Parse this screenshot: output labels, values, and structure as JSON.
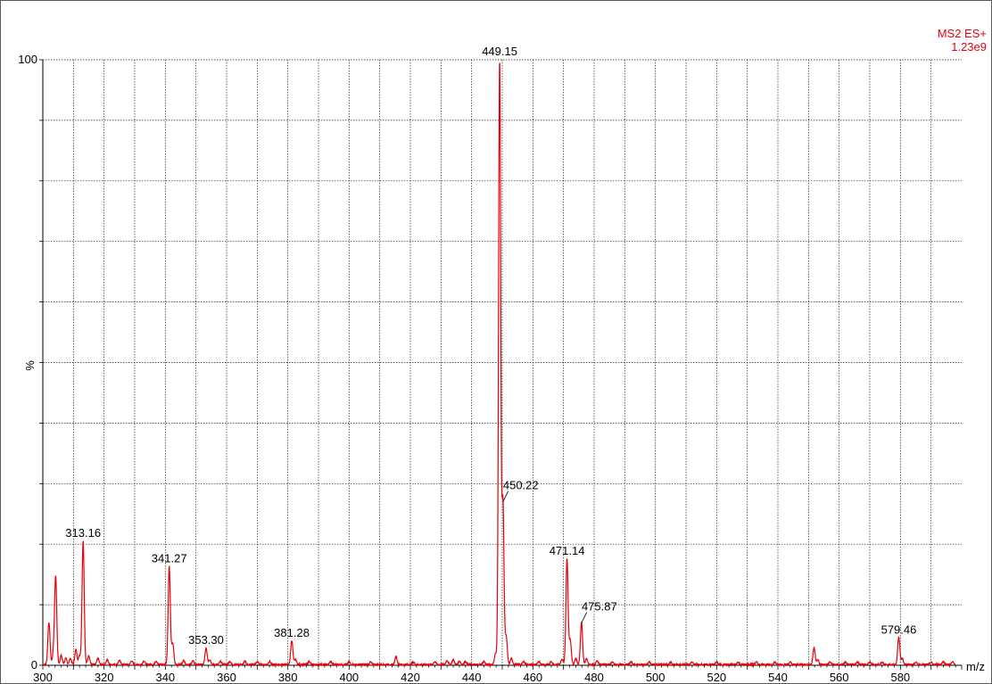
{
  "chart_data": {
    "type": "line",
    "title": "",
    "header": {
      "scan": "MS2 ES+",
      "intensity": "1.23e9"
    },
    "xlabel": "m/z",
    "ylabel": "%",
    "xlim": [
      300,
      600
    ],
    "ylim": [
      0,
      100
    ],
    "grid": true,
    "x_ticks": [
      300,
      320,
      340,
      360,
      380,
      400,
      420,
      440,
      460,
      480,
      500,
      520,
      540,
      560,
      580
    ],
    "y_ticks": [
      {
        "value": 0,
        "label": "0"
      },
      {
        "value": 100,
        "label": "100"
      }
    ],
    "series_color": "#e8000b",
    "peaks": [
      {
        "mz": 302.0,
        "intensity": 7.0
      },
      {
        "mz": 303.5,
        "intensity": 2.0
      },
      {
        "mz": 304.2,
        "intensity": 14.5
      },
      {
        "mz": 306.0,
        "intensity": 1.5
      },
      {
        "mz": 307.5,
        "intensity": 1.0
      },
      {
        "mz": 309.0,
        "intensity": 1.0
      },
      {
        "mz": 310.8,
        "intensity": 2.5
      },
      {
        "mz": 312.0,
        "intensity": 1.5
      },
      {
        "mz": 313.16,
        "intensity": 20.5,
        "label": "313.16"
      },
      {
        "mz": 315.0,
        "intensity": 1.5
      },
      {
        "mz": 318.0,
        "intensity": 1.0
      },
      {
        "mz": 321.0,
        "intensity": 0.8
      },
      {
        "mz": 325.0,
        "intensity": 0.7
      },
      {
        "mz": 329.0,
        "intensity": 0.6
      },
      {
        "mz": 333.0,
        "intensity": 0.6
      },
      {
        "mz": 337.0,
        "intensity": 0.6
      },
      {
        "mz": 341.27,
        "intensity": 16.3,
        "label": "341.27"
      },
      {
        "mz": 342.4,
        "intensity": 3.5
      },
      {
        "mz": 346.0,
        "intensity": 0.7
      },
      {
        "mz": 349.0,
        "intensity": 0.6
      },
      {
        "mz": 353.3,
        "intensity": 2.8,
        "label": "353.30"
      },
      {
        "mz": 354.5,
        "intensity": 0.8
      },
      {
        "mz": 358.0,
        "intensity": 0.5
      },
      {
        "mz": 361.0,
        "intensity": 0.5
      },
      {
        "mz": 366.0,
        "intensity": 0.5
      },
      {
        "mz": 370.0,
        "intensity": 0.5
      },
      {
        "mz": 374.0,
        "intensity": 0.5
      },
      {
        "mz": 381.28,
        "intensity": 4.0,
        "label": "381.28"
      },
      {
        "mz": 382.5,
        "intensity": 0.8
      },
      {
        "mz": 387.0,
        "intensity": 0.5
      },
      {
        "mz": 394.0,
        "intensity": 0.5
      },
      {
        "mz": 400.0,
        "intensity": 0.4
      },
      {
        "mz": 407.0,
        "intensity": 0.4
      },
      {
        "mz": 415.3,
        "intensity": 1.3
      },
      {
        "mz": 421.0,
        "intensity": 0.4
      },
      {
        "mz": 428.0,
        "intensity": 0.5
      },
      {
        "mz": 432.0,
        "intensity": 0.7
      },
      {
        "mz": 434.0,
        "intensity": 0.8
      },
      {
        "mz": 436.0,
        "intensity": 0.6
      },
      {
        "mz": 438.0,
        "intensity": 0.5
      },
      {
        "mz": 444.0,
        "intensity": 0.5
      },
      {
        "mz": 447.8,
        "intensity": 1.8
      },
      {
        "mz": 449.15,
        "intensity": 100.0,
        "label": "449.15"
      },
      {
        "mz": 450.22,
        "intensity": 27.0,
        "label": "450.22"
      },
      {
        "mz": 451.3,
        "intensity": 4.5
      },
      {
        "mz": 453.0,
        "intensity": 1.0
      },
      {
        "mz": 457.0,
        "intensity": 0.5
      },
      {
        "mz": 462.0,
        "intensity": 0.5
      },
      {
        "mz": 466.0,
        "intensity": 0.5
      },
      {
        "mz": 469.5,
        "intensity": 0.8
      },
      {
        "mz": 471.14,
        "intensity": 17.5,
        "label": "471.14"
      },
      {
        "mz": 472.2,
        "intensity": 4.0
      },
      {
        "mz": 474.0,
        "intensity": 1.0
      },
      {
        "mz": 475.87,
        "intensity": 7.0,
        "label": "475.87"
      },
      {
        "mz": 477.5,
        "intensity": 1.0
      },
      {
        "mz": 481.0,
        "intensity": 0.6
      },
      {
        "mz": 486.0,
        "intensity": 0.4
      },
      {
        "mz": 492.0,
        "intensity": 0.4
      },
      {
        "mz": 498.0,
        "intensity": 0.4
      },
      {
        "mz": 505.0,
        "intensity": 0.4
      },
      {
        "mz": 512.0,
        "intensity": 0.4
      },
      {
        "mz": 520.0,
        "intensity": 0.4
      },
      {
        "mz": 527.0,
        "intensity": 0.4
      },
      {
        "mz": 533.0,
        "intensity": 0.4
      },
      {
        "mz": 539.0,
        "intensity": 0.4
      },
      {
        "mz": 544.0,
        "intensity": 0.4
      },
      {
        "mz": 551.8,
        "intensity": 2.8
      },
      {
        "mz": 553.0,
        "intensity": 0.8
      },
      {
        "mz": 557.0,
        "intensity": 0.4
      },
      {
        "mz": 562.0,
        "intensity": 0.4
      },
      {
        "mz": 566.0,
        "intensity": 0.4
      },
      {
        "mz": 570.0,
        "intensity": 0.4
      },
      {
        "mz": 574.0,
        "intensity": 0.4
      },
      {
        "mz": 579.46,
        "intensity": 4.5,
        "label": "579.46"
      },
      {
        "mz": 580.6,
        "intensity": 1.0
      },
      {
        "mz": 585.0,
        "intensity": 0.4
      },
      {
        "mz": 590.0,
        "intensity": 0.4
      },
      {
        "mz": 594.0,
        "intensity": 0.5
      },
      {
        "mz": 597.0,
        "intensity": 0.4
      }
    ]
  }
}
